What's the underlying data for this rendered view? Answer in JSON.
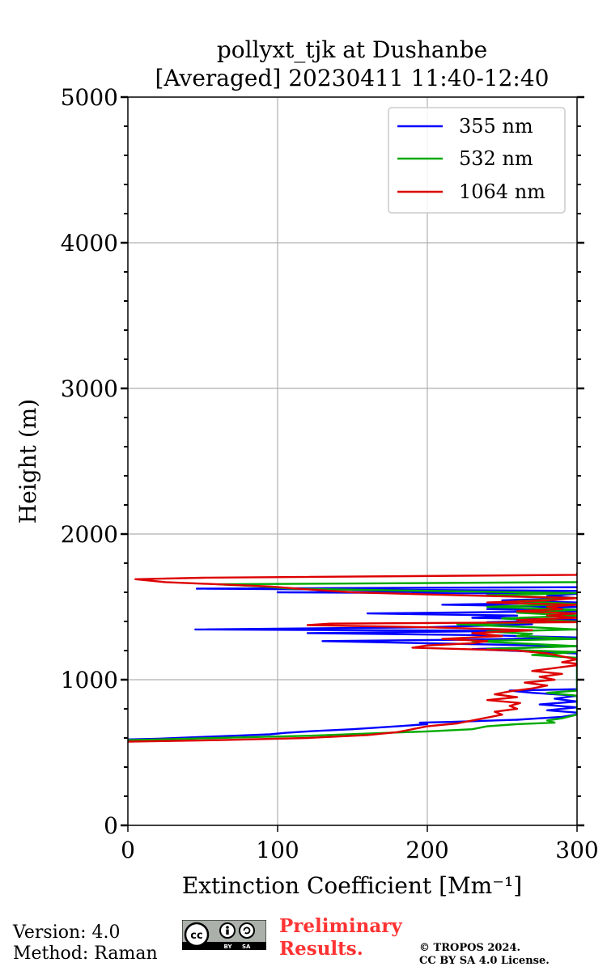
{
  "chart_data": {
    "type": "line",
    "title_line1": "pollyxt_tjk at Dushanbe",
    "title_line2": "[Averaged] 20230411 11:40-12:40",
    "xlabel": "Extinction Coefficient [Mm⁻¹]",
    "ylabel": "Height (m)",
    "xlim": [
      0,
      300
    ],
    "ylim": [
      0,
      5000
    ],
    "x_ticks": [
      0,
      100,
      200,
      300
    ],
    "y_ticks": [
      0,
      1000,
      2000,
      3000,
      4000,
      5000
    ],
    "y_minor_step": 200,
    "grid": true,
    "legend_position": "top-right",
    "series": [
      {
        "name": "355 nm",
        "color": "#0000ff",
        "points": [
          [
            0,
            590
          ],
          [
            20,
            595
          ],
          [
            45,
            605
          ],
          [
            70,
            615
          ],
          [
            95,
            625
          ],
          [
            105,
            635
          ],
          [
            120,
            645
          ],
          [
            150,
            660
          ],
          [
            180,
            680
          ],
          [
            200,
            695
          ],
          [
            195,
            705
          ],
          [
            215,
            710
          ],
          [
            230,
            715
          ],
          [
            260,
            725
          ],
          [
            290,
            745
          ],
          [
            305,
            770
          ],
          [
            280,
            790
          ],
          [
            300,
            810
          ],
          [
            275,
            830
          ],
          [
            300,
            850
          ],
          [
            285,
            870
          ],
          [
            300,
            890
          ],
          [
            270,
            910
          ],
          [
            255,
            925
          ],
          [
            300,
            935
          ],
          [
            300,
            1180
          ],
          [
            230,
            1210
          ],
          [
            300,
            1230
          ],
          [
            200,
            1250
          ],
          [
            130,
            1265
          ],
          [
            230,
            1275
          ],
          [
            300,
            1290
          ],
          [
            240,
            1305
          ],
          [
            120,
            1320
          ],
          [
            260,
            1335
          ],
          [
            45,
            1345
          ],
          [
            200,
            1360
          ],
          [
            270,
            1380
          ],
          [
            240,
            1395
          ],
          [
            300,
            1410
          ],
          [
            230,
            1425
          ],
          [
            260,
            1440
          ],
          [
            160,
            1455
          ],
          [
            300,
            1470
          ],
          [
            240,
            1485
          ],
          [
            300,
            1500
          ],
          [
            210,
            1515
          ],
          [
            300,
            1530
          ],
          [
            250,
            1545
          ],
          [
            300,
            1560
          ],
          [
            280,
            1575
          ],
          [
            300,
            1590
          ],
          [
            100,
            1600
          ],
          [
            300,
            1610
          ],
          [
            46,
            1625
          ],
          [
            300,
            1635
          ]
        ]
      },
      {
        "name": "532 nm",
        "color": "#00aa00",
        "points": [
          [
            0,
            585
          ],
          [
            40,
            595
          ],
          [
            80,
            605
          ],
          [
            120,
            615
          ],
          [
            160,
            630
          ],
          [
            200,
            645
          ],
          [
            230,
            660
          ],
          [
            240,
            680
          ],
          [
            260,
            695
          ],
          [
            285,
            705
          ],
          [
            280,
            720
          ],
          [
            290,
            735
          ],
          [
            300,
            760
          ],
          [
            300,
            890
          ],
          [
            280,
            910
          ],
          [
            300,
            925
          ],
          [
            300,
            1150
          ],
          [
            270,
            1170
          ],
          [
            300,
            1190
          ],
          [
            240,
            1210
          ],
          [
            300,
            1230
          ],
          [
            260,
            1250
          ],
          [
            230,
            1265
          ],
          [
            300,
            1280
          ],
          [
            260,
            1300
          ],
          [
            270,
            1315
          ],
          [
            240,
            1330
          ],
          [
            300,
            1345
          ],
          [
            270,
            1360
          ],
          [
            220,
            1380
          ],
          [
            300,
            1400
          ],
          [
            250,
            1420
          ],
          [
            300,
            1440
          ],
          [
            260,
            1460
          ],
          [
            300,
            1480
          ],
          [
            240,
            1500
          ],
          [
            300,
            1520
          ],
          [
            260,
            1540
          ],
          [
            300,
            1560
          ],
          [
            240,
            1580
          ],
          [
            300,
            1595
          ],
          [
            200,
            1610
          ],
          [
            110,
            1625
          ],
          [
            90,
            1640
          ],
          [
            60,
            1655
          ],
          [
            300,
            1670
          ]
        ]
      },
      {
        "name": "1064 nm",
        "color": "#dd0000",
        "points": [
          [
            0,
            575
          ],
          [
            60,
            585
          ],
          [
            120,
            600
          ],
          [
            160,
            620
          ],
          [
            180,
            640
          ],
          [
            190,
            660
          ],
          [
            200,
            680
          ],
          [
            220,
            700
          ],
          [
            230,
            720
          ],
          [
            240,
            740
          ],
          [
            250,
            760
          ],
          [
            245,
            780
          ],
          [
            260,
            800
          ],
          [
            255,
            820
          ],
          [
            262,
            840
          ],
          [
            240,
            860
          ],
          [
            260,
            880
          ],
          [
            245,
            900
          ],
          [
            255,
            920
          ],
          [
            270,
            940
          ],
          [
            280,
            960
          ],
          [
            265,
            980
          ],
          [
            285,
            1000
          ],
          [
            275,
            1020
          ],
          [
            290,
            1040
          ],
          [
            270,
            1060
          ],
          [
            285,
            1080
          ],
          [
            300,
            1100
          ],
          [
            300,
            1110
          ],
          [
            290,
            1120
          ],
          [
            300,
            1140
          ],
          [
            290,
            1160
          ],
          [
            280,
            1180
          ],
          [
            260,
            1200
          ],
          [
            190,
            1220
          ],
          [
            200,
            1235
          ],
          [
            230,
            1250
          ],
          [
            240,
            1265
          ],
          [
            210,
            1280
          ],
          [
            250,
            1300
          ],
          [
            230,
            1320
          ],
          [
            270,
            1340
          ],
          [
            200,
            1360
          ],
          [
            120,
            1375
          ],
          [
            135,
            1385
          ],
          [
            300,
            1395
          ],
          [
            260,
            1410
          ],
          [
            300,
            1425
          ],
          [
            280,
            1440
          ],
          [
            300,
            1455
          ],
          [
            260,
            1470
          ],
          [
            290,
            1485
          ],
          [
            280,
            1500
          ],
          [
            300,
            1515
          ],
          [
            240,
            1530
          ],
          [
            280,
            1545
          ],
          [
            300,
            1560
          ],
          [
            220,
            1580
          ],
          [
            150,
            1600
          ],
          [
            120,
            1620
          ],
          [
            95,
            1640
          ],
          [
            60,
            1655
          ],
          [
            25,
            1670
          ],
          [
            5,
            1690
          ],
          [
            50,
            1700
          ],
          [
            300,
            1720
          ],
          [
            300,
            1735
          ]
        ]
      }
    ]
  },
  "footer": {
    "version": "Version: 4.0",
    "method": "Method: Raman",
    "preliminary_line1": "Preliminary",
    "preliminary_line2": "Results.",
    "copyright_line1": "© TROPOS 2024.",
    "copyright_line2": "CC BY SA 4.0 License.",
    "cc_badge_text": "BY SA"
  }
}
